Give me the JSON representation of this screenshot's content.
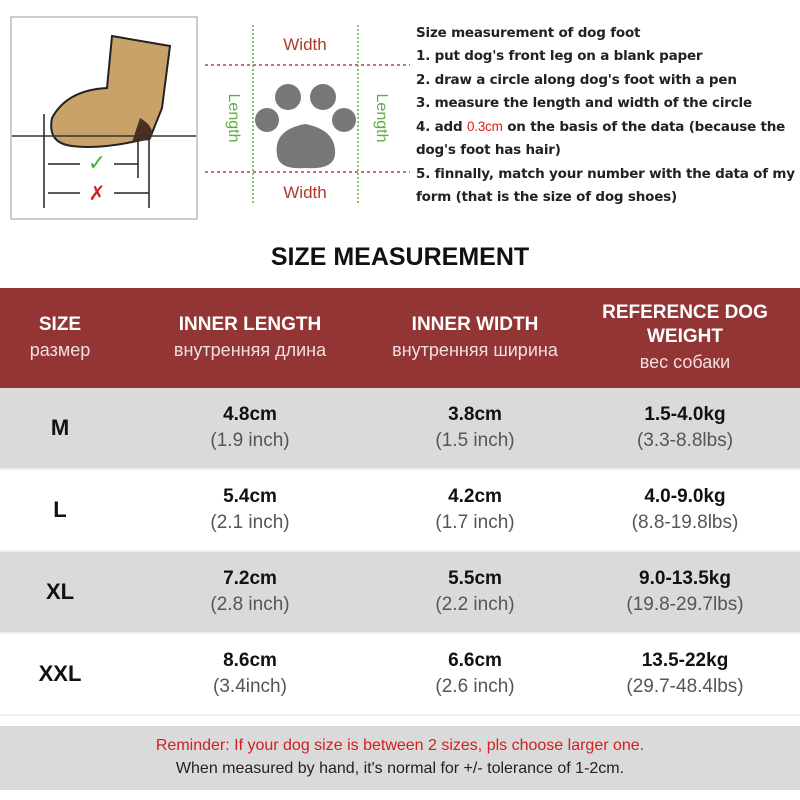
{
  "diagram": {
    "width_label": "Width",
    "length_label": "Length",
    "check_mark": "✓",
    "cross_mark": "✗"
  },
  "instructions": {
    "heading": "Size measurement of dog foot",
    "step1": "1. put dog's front leg on a blank paper",
    "step2": "2. draw a circle along dog's foot with a pen",
    "step3": "3. measure the length and width of the circle",
    "step4_pre": "4. add ",
    "step4_highlight": "0.3cm",
    "step4_post": " on the basis of the data (because the dog's foot has hair)",
    "step5": "5. finnally, match your number with the data of my form (that is the size of dog shoes)"
  },
  "title": "SIZE MEASUREMENT",
  "colors": {
    "header": "#933535",
    "stripe": "#dadada",
    "reminder": "#d02020"
  },
  "table": {
    "headers": [
      {
        "title": "SIZE",
        "sub": "размер"
      },
      {
        "title": "INNER LENGTH",
        "sub": "внутренняя длина"
      },
      {
        "title": "INNER WIDTH",
        "sub": "внутренняя ширина"
      },
      {
        "title": "REFERENCE DOG WEIGHT",
        "sub": "вес собаки"
      }
    ],
    "rows": [
      {
        "size": "M",
        "length": "4.8cm",
        "length_in": "(1.9 inch)",
        "width": "3.8cm",
        "width_in": "(1.5 inch)",
        "weight": "1.5-4.0kg",
        "weight_lbs": "(3.3-8.8lbs)"
      },
      {
        "size": "L",
        "length": "5.4cm",
        "length_in": "(2.1 inch)",
        "width": "4.2cm",
        "width_in": "(1.7 inch)",
        "weight": "4.0-9.0kg",
        "weight_lbs": "(8.8-19.8lbs)"
      },
      {
        "size": "XL",
        "length": "7.2cm",
        "length_in": "(2.8 inch)",
        "width": "5.5cm",
        "width_in": "(2.2 inch)",
        "weight": "9.0-13.5kg",
        "weight_lbs": "(19.8-29.7lbs)"
      },
      {
        "size": "XXL",
        "length": "8.6cm",
        "length_in": "(3.4inch)",
        "width": "6.6cm",
        "width_in": "(2.6 inch)",
        "weight": "13.5-22kg",
        "weight_lbs": "(29.7-48.4lbs)"
      }
    ]
  },
  "footer": {
    "reminder": "Reminder: If your dog size is between 2 sizes, pls choose larger one.",
    "tolerance": "When measured by hand, it's normal for +/- tolerance of 1-2cm."
  }
}
